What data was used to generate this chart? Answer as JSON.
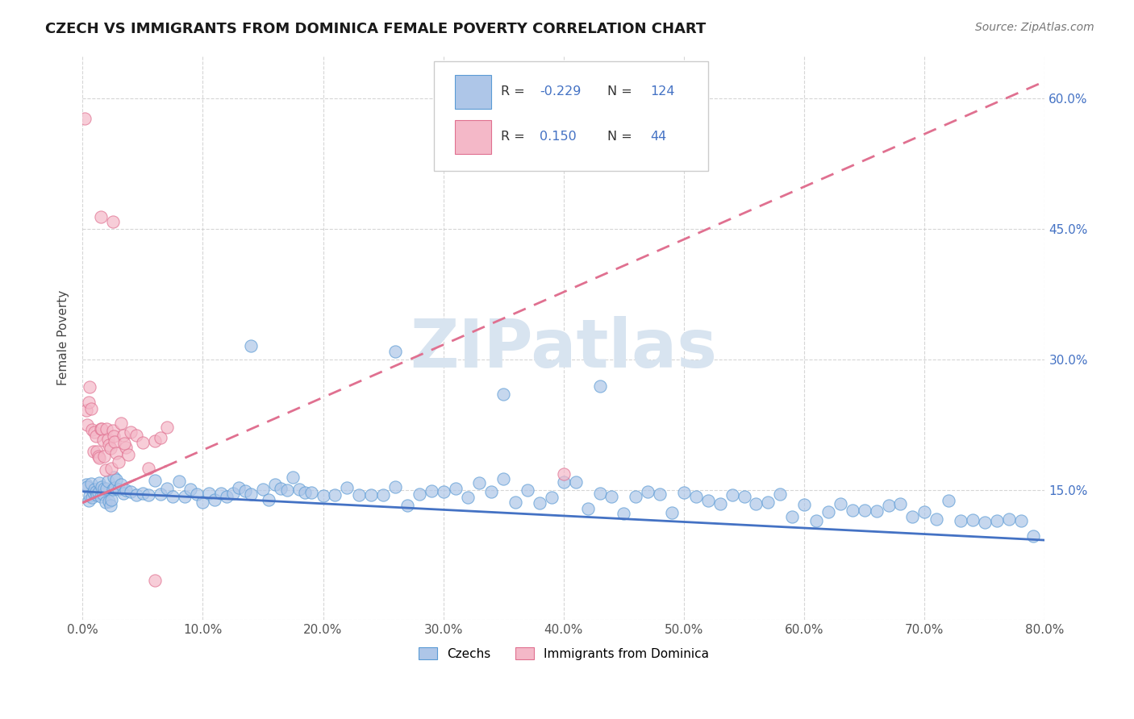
{
  "title": "CZECH VS IMMIGRANTS FROM DOMINICA FEMALE POVERTY CORRELATION CHART",
  "source": "Source: ZipAtlas.com",
  "ylabel": "Female Poverty",
  "xlim": [
    0.0,
    0.8
  ],
  "ylim": [
    0.0,
    0.65
  ],
  "xticks": [
    0.0,
    0.1,
    0.2,
    0.3,
    0.4,
    0.5,
    0.6,
    0.7,
    0.8
  ],
  "xtick_labels": [
    "0.0%",
    "10.0%",
    "20.0%",
    "30.0%",
    "40.0%",
    "50.0%",
    "60.0%",
    "70.0%",
    "80.0%"
  ],
  "ytick_labels_right": [
    "60.0%",
    "45.0%",
    "30.0%",
    "15.0%"
  ],
  "yticks": [
    0.0,
    0.15,
    0.3,
    0.45,
    0.6
  ],
  "yticks_right": [
    0.6,
    0.45,
    0.3,
    0.15
  ],
  "czechs_R": -0.229,
  "czechs_N": 124,
  "dominica_R": 0.15,
  "dominica_N": 44,
  "blue_scatter_color": "#aec6e8",
  "blue_edge_color": "#5b9bd5",
  "pink_scatter_color": "#f4b8c8",
  "pink_edge_color": "#e07090",
  "blue_line_color": "#4472c4",
  "pink_line_color": "#e07090",
  "watermark": "ZIPatlas",
  "watermark_color": "#d8e4f0",
  "background_color": "#ffffff",
  "grid_color": "#cccccc",
  "legend_label_czechs": "Czechs",
  "legend_label_dominica": "Immigrants from Dominica",
  "czechs_x": [
    0.003,
    0.004,
    0.005,
    0.006,
    0.007,
    0.008,
    0.009,
    0.01,
    0.011,
    0.012,
    0.013,
    0.014,
    0.015,
    0.016,
    0.017,
    0.018,
    0.019,
    0.02,
    0.021,
    0.022,
    0.023,
    0.024,
    0.025,
    0.026,
    0.027,
    0.028,
    0.03,
    0.032,
    0.034,
    0.036,
    0.04,
    0.045,
    0.05,
    0.055,
    0.06,
    0.065,
    0.07,
    0.075,
    0.08,
    0.085,
    0.09,
    0.095,
    0.1,
    0.105,
    0.11,
    0.115,
    0.12,
    0.125,
    0.13,
    0.135,
    0.14,
    0.15,
    0.155,
    0.16,
    0.165,
    0.17,
    0.175,
    0.18,
    0.185,
    0.19,
    0.2,
    0.21,
    0.22,
    0.23,
    0.24,
    0.25,
    0.26,
    0.27,
    0.28,
    0.29,
    0.3,
    0.31,
    0.32,
    0.33,
    0.34,
    0.35,
    0.36,
    0.37,
    0.38,
    0.39,
    0.4,
    0.41,
    0.42,
    0.43,
    0.44,
    0.45,
    0.46,
    0.47,
    0.48,
    0.49,
    0.5,
    0.51,
    0.52,
    0.53,
    0.54,
    0.55,
    0.56,
    0.57,
    0.58,
    0.59,
    0.6,
    0.61,
    0.62,
    0.63,
    0.64,
    0.65,
    0.66,
    0.67,
    0.68,
    0.69,
    0.7,
    0.71,
    0.72,
    0.73,
    0.74,
    0.75,
    0.76,
    0.77,
    0.78,
    0.79,
    0.14,
    0.26,
    0.35,
    0.43
  ],
  "czechs_y": [
    0.145,
    0.148,
    0.15,
    0.143,
    0.152,
    0.147,
    0.145,
    0.15,
    0.148,
    0.145,
    0.143,
    0.148,
    0.15,
    0.145,
    0.143,
    0.148,
    0.145,
    0.15,
    0.148,
    0.145,
    0.148,
    0.152,
    0.148,
    0.145,
    0.143,
    0.148,
    0.15,
    0.145,
    0.148,
    0.145,
    0.15,
    0.148,
    0.145,
    0.148,
    0.15,
    0.143,
    0.148,
    0.145,
    0.15,
    0.148,
    0.145,
    0.148,
    0.143,
    0.15,
    0.145,
    0.148,
    0.145,
    0.143,
    0.148,
    0.15,
    0.145,
    0.148,
    0.143,
    0.15,
    0.145,
    0.148,
    0.145,
    0.143,
    0.148,
    0.15,
    0.145,
    0.148,
    0.143,
    0.15,
    0.145,
    0.148,
    0.145,
    0.143,
    0.148,
    0.15,
    0.145,
    0.148,
    0.143,
    0.15,
    0.145,
    0.143,
    0.148,
    0.145,
    0.143,
    0.148,
    0.143,
    0.145,
    0.143,
    0.148,
    0.143,
    0.14,
    0.143,
    0.145,
    0.143,
    0.14,
    0.138,
    0.14,
    0.138,
    0.14,
    0.138,
    0.135,
    0.138,
    0.135,
    0.138,
    0.135,
    0.132,
    0.13,
    0.132,
    0.13,
    0.128,
    0.13,
    0.128,
    0.125,
    0.128,
    0.125,
    0.122,
    0.12,
    0.118,
    0.12,
    0.118,
    0.115,
    0.118,
    0.115,
    0.112,
    0.11,
    0.32,
    0.32,
    0.25,
    0.25
  ],
  "dominica_x": [
    0.002,
    0.003,
    0.004,
    0.005,
    0.006,
    0.007,
    0.008,
    0.009,
    0.01,
    0.011,
    0.012,
    0.013,
    0.014,
    0.015,
    0.016,
    0.017,
    0.018,
    0.019,
    0.02,
    0.021,
    0.022,
    0.023,
    0.024,
    0.025,
    0.026,
    0.027,
    0.028,
    0.03,
    0.032,
    0.034,
    0.036,
    0.038,
    0.04,
    0.045,
    0.05,
    0.055,
    0.06,
    0.065,
    0.07,
    0.035,
    0.025,
    0.015,
    0.4,
    0.06
  ],
  "dominica_y": [
    0.57,
    0.24,
    0.22,
    0.25,
    0.26,
    0.24,
    0.22,
    0.2,
    0.22,
    0.21,
    0.2,
    0.19,
    0.18,
    0.22,
    0.21,
    0.2,
    0.19,
    0.18,
    0.22,
    0.21,
    0.2,
    0.19,
    0.18,
    0.22,
    0.21,
    0.2,
    0.19,
    0.18,
    0.22,
    0.21,
    0.2,
    0.19,
    0.22,
    0.21,
    0.2,
    0.19,
    0.2,
    0.21,
    0.22,
    0.2,
    0.47,
    0.47,
    0.17,
    0.05
  ],
  "czech_line_x0": 0.0,
  "czech_line_y0": 0.148,
  "czech_line_x1": 0.8,
  "czech_line_y1": 0.092,
  "dom_line_x0": 0.0,
  "dom_line_y0": 0.135,
  "dom_line_x1": 0.8,
  "dom_line_y1": 0.62
}
